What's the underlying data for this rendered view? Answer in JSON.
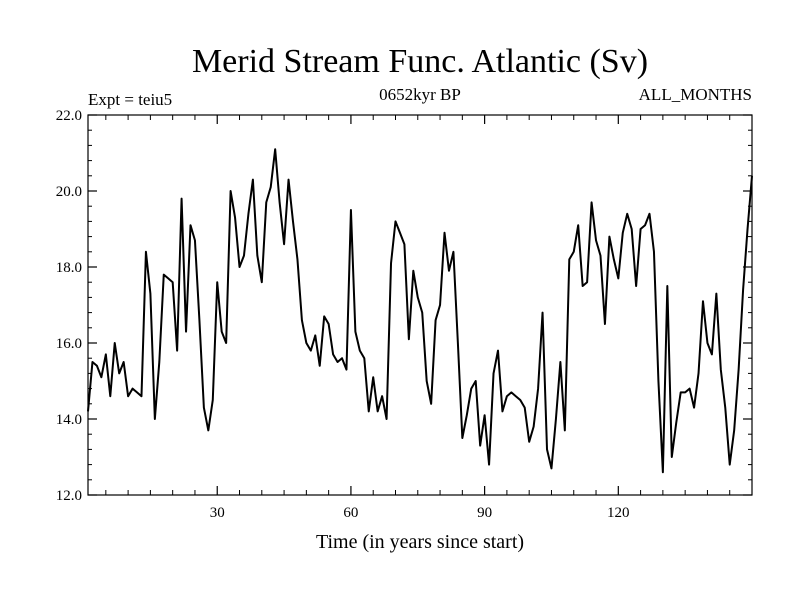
{
  "chart_data": {
    "type": "line",
    "title": "Merid Stream Func. Atlantic (Sv)",
    "subtitle_left": "Expt = teiu5",
    "subtitle_center": "0652kyr BP",
    "subtitle_right": "ALL_MONTHS",
    "xlabel": "Time (in years since start)",
    "ylabel": "",
    "xlim": [
      1,
      150
    ],
    "ylim": [
      12.0,
      22.0
    ],
    "xticks": [
      30,
      60,
      90,
      120
    ],
    "xtick_labels": [
      "30",
      "60",
      "90",
      "120"
    ],
    "yticks": [
      12,
      14,
      16,
      18,
      20,
      22
    ],
    "ytick_labels": [
      "12.0",
      "14.0",
      "16.0",
      "18.0",
      "20.0",
      "22.0"
    ],
    "grid": false,
    "series": [
      {
        "name": "Merid Stream Func.",
        "color": "#000000",
        "x": [
          1,
          2,
          3,
          4,
          5,
          6,
          7,
          8,
          9,
          10,
          11,
          12,
          13,
          14,
          15,
          16,
          17,
          18,
          19,
          20,
          21,
          22,
          23,
          24,
          25,
          26,
          27,
          28,
          29,
          30,
          31,
          32,
          33,
          34,
          35,
          36,
          37,
          38,
          39,
          40,
          41,
          42,
          43,
          44,
          45,
          46,
          47,
          48,
          49,
          50,
          51,
          52,
          53,
          54,
          55,
          56,
          57,
          58,
          59,
          60,
          61,
          62,
          63,
          64,
          65,
          66,
          67,
          68,
          69,
          70,
          71,
          72,
          73,
          74,
          75,
          76,
          77,
          78,
          79,
          80,
          81,
          82,
          83,
          84,
          85,
          86,
          87,
          88,
          89,
          90,
          91,
          92,
          93,
          94,
          95,
          96,
          97,
          98,
          99,
          100,
          101,
          102,
          103,
          104,
          105,
          106,
          107,
          108,
          109,
          110,
          111,
          112,
          113,
          114,
          115,
          116,
          117,
          118,
          119,
          120,
          121,
          122,
          123,
          124,
          125,
          126,
          127,
          128,
          129,
          130,
          131,
          132,
          133,
          134,
          135,
          136,
          137,
          138,
          139,
          140,
          141,
          142,
          143,
          144,
          145,
          146,
          147,
          148,
          149,
          150
        ],
        "values": [
          14.2,
          15.5,
          15.4,
          15.1,
          15.7,
          14.6,
          16.0,
          15.2,
          15.5,
          14.6,
          14.8,
          14.7,
          14.6,
          18.4,
          17.3,
          14.0,
          15.5,
          17.8,
          17.7,
          17.6,
          15.8,
          19.8,
          16.3,
          19.1,
          18.7,
          16.6,
          14.3,
          13.7,
          14.5,
          17.6,
          16.3,
          16.0,
          20.0,
          19.3,
          18.0,
          18.3,
          19.4,
          20.3,
          18.3,
          17.6,
          19.7,
          20.1,
          21.1,
          19.7,
          18.6,
          20.3,
          19.2,
          18.2,
          16.6,
          16.0,
          15.8,
          16.2,
          15.4,
          16.7,
          16.5,
          15.7,
          15.5,
          15.6,
          15.3,
          19.5,
          16.3,
          15.8,
          15.6,
          14.2,
          15.1,
          14.2,
          14.6,
          14.0,
          18.1,
          19.2,
          18.9,
          18.6,
          16.1,
          17.9,
          17.2,
          16.8,
          15.0,
          14.4,
          16.6,
          17.0,
          18.9,
          17.9,
          18.4,
          16.0,
          13.5,
          14.1,
          14.8,
          15.0,
          13.3,
          14.1,
          12.8,
          15.2,
          15.8,
          14.2,
          14.6,
          14.7,
          14.6,
          14.5,
          14.3,
          13.4,
          13.8,
          14.8,
          16.8,
          13.2,
          12.7,
          14.0,
          15.5,
          13.7,
          18.2,
          18.4,
          19.1,
          17.5,
          17.6,
          19.7,
          18.7,
          18.3,
          16.5,
          18.8,
          18.2,
          17.7,
          18.9,
          19.4,
          19.0,
          17.5,
          19.0,
          19.1,
          19.4,
          18.4,
          15.0,
          12.6,
          17.5,
          13.0,
          13.9,
          14.7,
          14.7,
          14.8,
          14.3,
          15.2,
          17.1,
          16.0,
          15.7,
          17.3,
          15.3,
          14.3,
          12.8,
          13.7,
          15.3,
          17.4,
          19.0,
          20.4
        ]
      }
    ]
  }
}
